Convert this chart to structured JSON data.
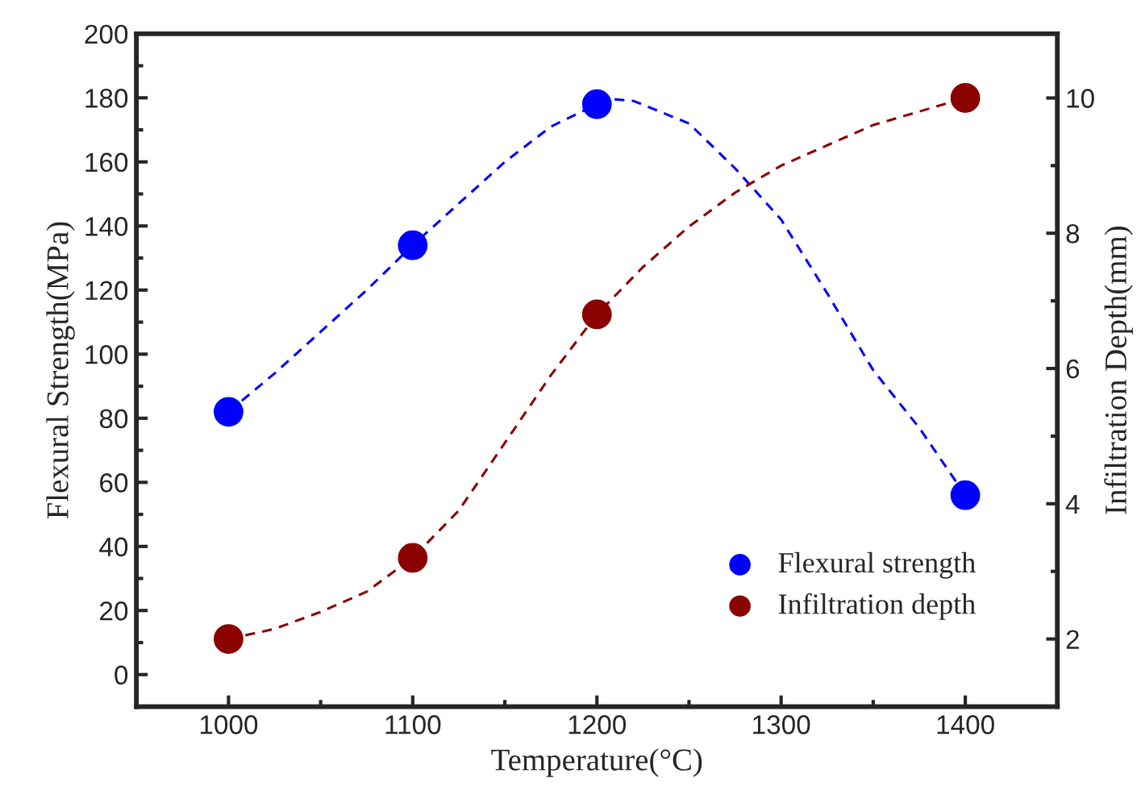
{
  "chart_data": {
    "type": "scatter",
    "xlabel": "Temperature(°C)",
    "ylabel": "Flexural Strength(MPa)",
    "y2label": "Infiltration Depth(mm)",
    "x": [
      1000,
      1100,
      1200,
      1400
    ],
    "series": [
      {
        "type": "line",
        "marker": "none",
        "color": "#0000ff",
        "x": [
          1000,
          1025,
          1050,
          1075,
          1100,
          1125,
          1150,
          1175,
          1200,
          1210,
          1220,
          1250,
          1275,
          1300,
          1325,
          1350,
          1375,
          1400
        ],
        "values": [
          82,
          94,
          107,
          120,
          134,
          147,
          160,
          171,
          178,
          179.5,
          179,
          172,
          158,
          142,
          119,
          95,
          77,
          56
        ]
      },
      {
        "type": "line",
        "marker": "none",
        "color": "#8b0000",
        "axis": "y2",
        "x": [
          1000,
          1025,
          1050,
          1075,
          1100,
          1125,
          1150,
          1175,
          1200,
          1225,
          1250,
          1275,
          1300,
          1325,
          1350,
          1375,
          1400
        ],
        "values": [
          2.0,
          2.15,
          2.4,
          2.7,
          3.2,
          3.9,
          4.9,
          5.9,
          6.8,
          7.5,
          8.1,
          8.6,
          9.0,
          9.3,
          9.6,
          9.8,
          10.0
        ]
      },
      {
        "name": "Flexural strength",
        "marker": "circle",
        "color": "#0000ff",
        "values": [
          82,
          134,
          178,
          56
        ]
      },
      {
        "name": "Infiltration depth",
        "marker": "circle",
        "color": "#8b0000",
        "values": [
          2.0,
          3.2,
          6.8,
          10.0
        ],
        "axis": "y2"
      }
    ],
    "xlim": [
      950,
      1450
    ],
    "xticks": [
      1000,
      1100,
      1200,
      1300,
      1400
    ],
    "ylim": [
      -10,
      200
    ],
    "yticks": [
      0,
      20,
      40,
      60,
      80,
      100,
      120,
      140,
      160,
      180,
      200
    ],
    "y2lim": [
      1,
      10.95
    ],
    "y2ticks": [
      2,
      4,
      6,
      8,
      10
    ],
    "line_style": "dashed",
    "legend": "bottom right",
    "grid": false
  }
}
